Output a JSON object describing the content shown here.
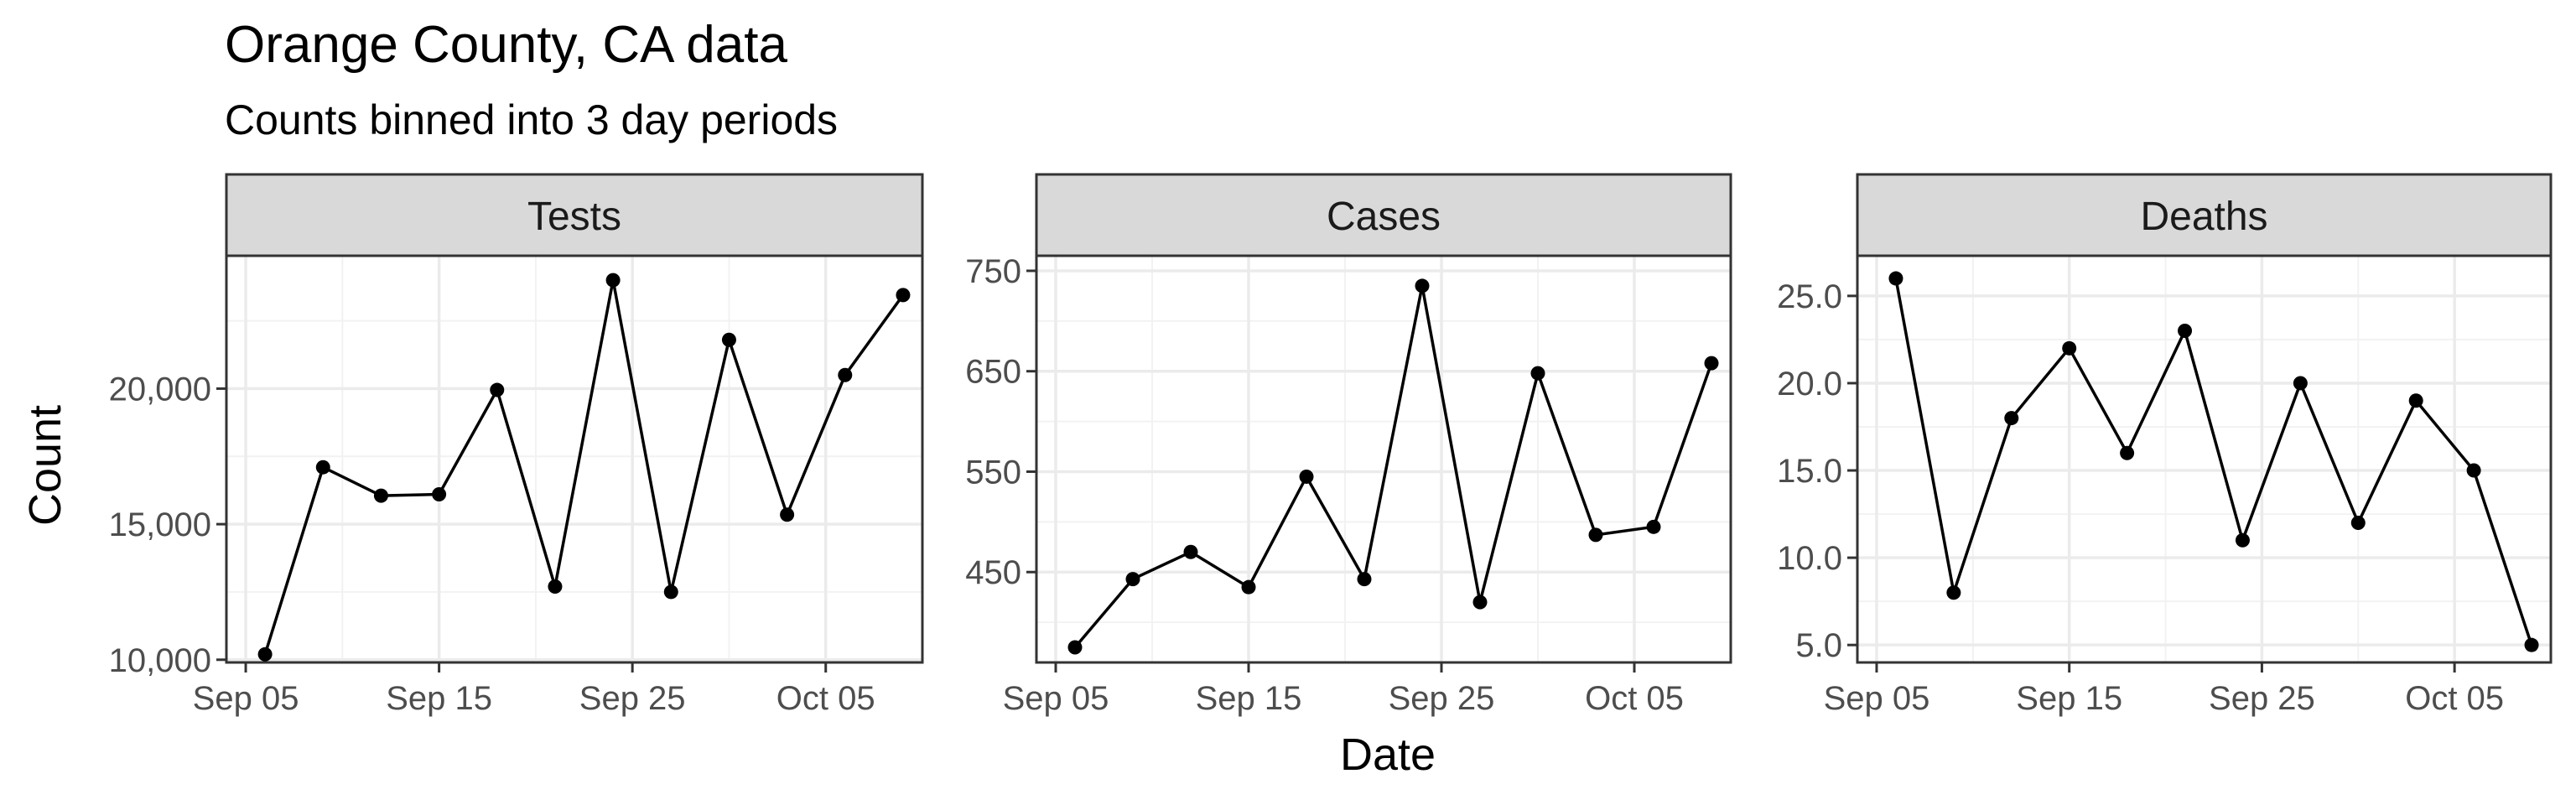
{
  "chart_data": {
    "type": "line",
    "title": "Orange County, CA data",
    "subtitle": "Counts binned into 3 day periods",
    "xlabel": "Date",
    "ylabel": "Count",
    "x_ticks": [
      "Sep 05",
      "Sep 15",
      "Sep 25",
      "Oct 05"
    ],
    "x_tick_dates": [
      "2020-09-05",
      "2020-09-15",
      "2020-09-25",
      "2020-10-05"
    ],
    "xlim": [
      "2020-09-04",
      "2020-10-10"
    ],
    "grid": true,
    "legend": "none",
    "x": [
      "2020-09-06",
      "2020-09-09",
      "2020-09-12",
      "2020-09-15",
      "2020-09-18",
      "2020-09-21",
      "2020-09-24",
      "2020-09-27",
      "2020-09-30",
      "2020-10-03",
      "2020-10-06",
      "2020-10-09"
    ],
    "panels": [
      {
        "strip": "Tests",
        "values": [
          10200,
          17100,
          16050,
          16100,
          19950,
          12700,
          24000,
          12500,
          21800,
          15350,
          20500,
          23450
        ],
        "ylim": [
          9900,
          24900
        ],
        "y_ticks": [
          10000,
          15000,
          20000
        ],
        "y_tick_labels": [
          "10,000",
          "15,000",
          "20,000"
        ],
        "y_minor": [
          12500,
          17500,
          22500
        ]
      },
      {
        "strip": "Cases",
        "values": [
          375,
          443,
          470,
          435,
          545,
          443,
          735,
          420,
          648,
          487,
          495,
          658
        ],
        "ylim": [
          360,
          765
        ],
        "y_ticks": [
          450,
          550,
          650,
          750
        ],
        "y_tick_labels": [
          "450",
          "550",
          "650",
          "750"
        ],
        "y_minor": [
          400,
          500,
          600,
          700
        ]
      },
      {
        "strip": "Deaths",
        "values": [
          26,
          8,
          18,
          22,
          16,
          23,
          11,
          20,
          12,
          19,
          15,
          5
        ],
        "ylim": [
          4,
          27.3
        ],
        "y_ticks": [
          5,
          10,
          15,
          20,
          25
        ],
        "y_tick_labels": [
          "5.0",
          "10.0",
          "15.0",
          "20.0",
          "25.0"
        ],
        "y_minor": [
          7.5,
          12.5,
          17.5,
          22.5
        ]
      }
    ]
  }
}
